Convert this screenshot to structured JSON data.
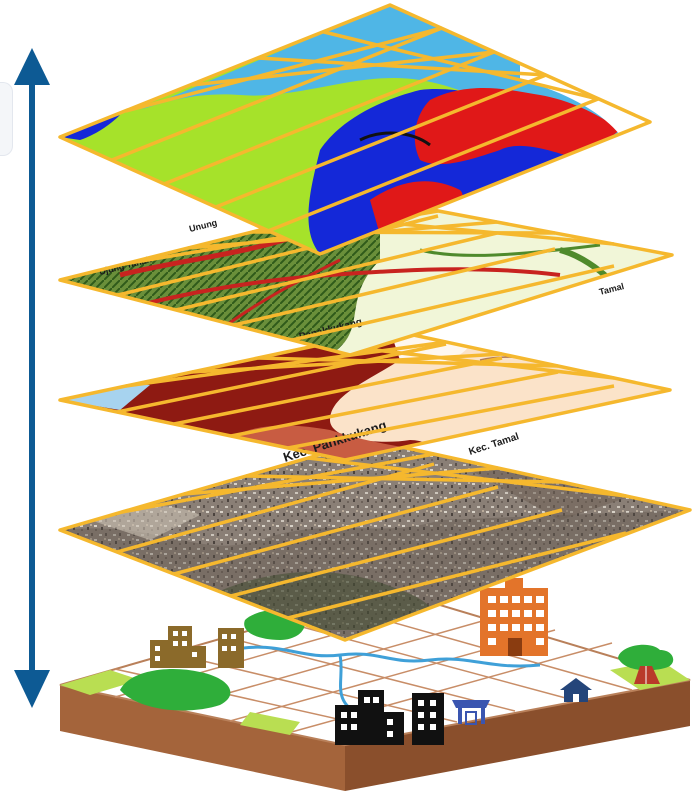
{
  "diagram": {
    "layers": [
      {
        "name": "hazard-zone-layer",
        "palette": {
          "base": "#a6e22a",
          "water": "#4fb6e6",
          "zone_a": "#1428d8",
          "zone_b": "#e01818"
        }
      },
      {
        "name": "street-map-layer",
        "palette": {
          "base": "#f1f6d8",
          "road": "#c8231f",
          "veg": "#4f8a2c"
        }
      },
      {
        "name": "administrative-layer",
        "palette": {
          "base": "#fbe3c9",
          "district_a": "#8e1a12",
          "district_b": "#c85c42"
        }
      },
      {
        "name": "satellite-imagery-layer",
        "palette": {
          "base": "#8c8177"
        }
      }
    ],
    "grid_color": "#f5b82e",
    "axis_arrow_color": "#0d5a94",
    "map_labels": {
      "street_1": "Unung",
      "street_2": "Ujung Tanah",
      "street_3": "Panakkukang",
      "street_4": "Tamal",
      "admin_1": "Kec. Pankkukang",
      "admin_2": "Kec. Tamal"
    },
    "ground_icons": [
      "office-building-icon",
      "city-block-icon",
      "tower-icon",
      "market-stall-icon",
      "house-icon",
      "tree-icon",
      "river-icon"
    ]
  }
}
